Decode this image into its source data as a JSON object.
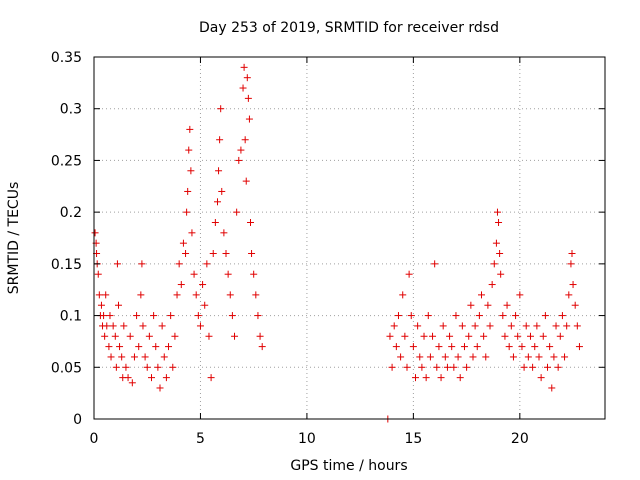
{
  "chart_data": {
    "type": "scatter",
    "title": "Day 253 of 2019, SRMTID for receiver rdsd",
    "xlabel": "GPS time / hours",
    "ylabel": "SRMTID / TECUs",
    "xlim": [
      0,
      24
    ],
    "ylim": [
      0,
      0.35
    ],
    "xticks": [
      0,
      5,
      10,
      15,
      20
    ],
    "xtick_labels": [
      "0",
      "5",
      "10",
      "15",
      "20"
    ],
    "yticks": [
      0,
      0.05,
      0.1,
      0.15,
      0.2,
      0.25,
      0.3,
      0.35
    ],
    "ytick_labels": [
      "0",
      "0.05",
      "0.1",
      "0.15",
      "0.2",
      "0.25",
      "0.3",
      "0.35"
    ],
    "grid": true,
    "marker": "plus",
    "color": "#e00000",
    "series": [
      {
        "name": "SRMTID",
        "points": [
          [
            0.05,
            0.18
          ],
          [
            0.1,
            0.17
          ],
          [
            0.12,
            0.16
          ],
          [
            0.15,
            0.15
          ],
          [
            0.2,
            0.14
          ],
          [
            0.25,
            0.12
          ],
          [
            0.3,
            0.1
          ],
          [
            0.35,
            0.11
          ],
          [
            0.4,
            0.09
          ],
          [
            0.45,
            0.1
          ],
          [
            0.5,
            0.08
          ],
          [
            0.55,
            0.12
          ],
          [
            0.6,
            0.09
          ],
          [
            0.7,
            0.07
          ],
          [
            0.75,
            0.1
          ],
          [
            0.8,
            0.06
          ],
          [
            0.9,
            0.09
          ],
          [
            1.0,
            0.08
          ],
          [
            1.05,
            0.05
          ],
          [
            1.1,
            0.15
          ],
          [
            1.15,
            0.11
          ],
          [
            1.2,
            0.07
          ],
          [
            1.3,
            0.06
          ],
          [
            1.35,
            0.04
          ],
          [
            1.4,
            0.09
          ],
          [
            1.5,
            0.05
          ],
          [
            1.6,
            0.04
          ],
          [
            1.7,
            0.08
          ],
          [
            1.8,
            0.035
          ],
          [
            1.9,
            0.06
          ],
          [
            2.0,
            0.1
          ],
          [
            2.1,
            0.07
          ],
          [
            2.2,
            0.12
          ],
          [
            2.25,
            0.15
          ],
          [
            2.3,
            0.09
          ],
          [
            2.4,
            0.06
          ],
          [
            2.5,
            0.05
          ],
          [
            2.6,
            0.08
          ],
          [
            2.7,
            0.04
          ],
          [
            2.8,
            0.1
          ],
          [
            2.9,
            0.07
          ],
          [
            3.0,
            0.05
          ],
          [
            3.1,
            0.03
          ],
          [
            3.2,
            0.09
          ],
          [
            3.3,
            0.06
          ],
          [
            3.4,
            0.04
          ],
          [
            3.5,
            0.07
          ],
          [
            3.6,
            0.1
          ],
          [
            3.7,
            0.05
          ],
          [
            3.8,
            0.08
          ],
          [
            3.9,
            0.12
          ],
          [
            4.0,
            0.15
          ],
          [
            4.1,
            0.13
          ],
          [
            4.2,
            0.17
          ],
          [
            4.3,
            0.16
          ],
          [
            4.35,
            0.2
          ],
          [
            4.4,
            0.22
          ],
          [
            4.45,
            0.26
          ],
          [
            4.5,
            0.28
          ],
          [
            4.55,
            0.24
          ],
          [
            4.6,
            0.18
          ],
          [
            4.7,
            0.14
          ],
          [
            4.8,
            0.12
          ],
          [
            4.9,
            0.1
          ],
          [
            5.0,
            0.09
          ],
          [
            5.1,
            0.13
          ],
          [
            5.2,
            0.11
          ],
          [
            5.3,
            0.15
          ],
          [
            5.4,
            0.08
          ],
          [
            5.5,
            0.04
          ],
          [
            5.6,
            0.16
          ],
          [
            5.7,
            0.19
          ],
          [
            5.8,
            0.21
          ],
          [
            5.85,
            0.24
          ],
          [
            5.9,
            0.27
          ],
          [
            5.95,
            0.3
          ],
          [
            6.0,
            0.22
          ],
          [
            6.1,
            0.18
          ],
          [
            6.2,
            0.16
          ],
          [
            6.3,
            0.14
          ],
          [
            6.4,
            0.12
          ],
          [
            6.5,
            0.1
          ],
          [
            6.6,
            0.08
          ],
          [
            6.7,
            0.2
          ],
          [
            6.8,
            0.25
          ],
          [
            6.9,
            0.26
          ],
          [
            7.0,
            0.32
          ],
          [
            7.05,
            0.34
          ],
          [
            7.1,
            0.27
          ],
          [
            7.15,
            0.23
          ],
          [
            7.2,
            0.33
          ],
          [
            7.25,
            0.31
          ],
          [
            7.3,
            0.29
          ],
          [
            7.35,
            0.19
          ],
          [
            7.4,
            0.16
          ],
          [
            7.5,
            0.14
          ],
          [
            7.6,
            0.12
          ],
          [
            7.7,
            0.1
          ],
          [
            7.8,
            0.08
          ],
          [
            7.9,
            0.07
          ],
          [
            13.8,
            0.0
          ],
          [
            13.9,
            0.08
          ],
          [
            14.0,
            0.05
          ],
          [
            14.1,
            0.09
          ],
          [
            14.2,
            0.07
          ],
          [
            14.3,
            0.1
          ],
          [
            14.4,
            0.06
          ],
          [
            14.5,
            0.12
          ],
          [
            14.6,
            0.08
          ],
          [
            14.7,
            0.05
          ],
          [
            14.8,
            0.14
          ],
          [
            14.9,
            0.1
          ],
          [
            15.0,
            0.07
          ],
          [
            15.1,
            0.04
          ],
          [
            15.2,
            0.09
          ],
          [
            15.3,
            0.06
          ],
          [
            15.4,
            0.05
          ],
          [
            15.5,
            0.08
          ],
          [
            15.6,
            0.04
          ],
          [
            15.7,
            0.1
          ],
          [
            15.8,
            0.06
          ],
          [
            15.9,
            0.08
          ],
          [
            16.0,
            0.15
          ],
          [
            16.1,
            0.05
          ],
          [
            16.2,
            0.07
          ],
          [
            16.3,
            0.04
          ],
          [
            16.4,
            0.09
          ],
          [
            16.5,
            0.06
          ],
          [
            16.6,
            0.05
          ],
          [
            16.7,
            0.08
          ],
          [
            16.8,
            0.07
          ],
          [
            16.9,
            0.05
          ],
          [
            17.0,
            0.1
          ],
          [
            17.1,
            0.06
          ],
          [
            17.2,
            0.04
          ],
          [
            17.3,
            0.09
          ],
          [
            17.4,
            0.07
          ],
          [
            17.5,
            0.05
          ],
          [
            17.6,
            0.08
          ],
          [
            17.7,
            0.11
          ],
          [
            17.8,
            0.06
          ],
          [
            17.9,
            0.09
          ],
          [
            18.0,
            0.07
          ],
          [
            18.1,
            0.1
          ],
          [
            18.2,
            0.12
          ],
          [
            18.3,
            0.08
          ],
          [
            18.4,
            0.06
          ],
          [
            18.5,
            0.11
          ],
          [
            18.6,
            0.09
          ],
          [
            18.7,
            0.13
          ],
          [
            18.8,
            0.15
          ],
          [
            18.9,
            0.17
          ],
          [
            18.95,
            0.2
          ],
          [
            19.0,
            0.19
          ],
          [
            19.05,
            0.16
          ],
          [
            19.1,
            0.14
          ],
          [
            19.2,
            0.1
          ],
          [
            19.3,
            0.08
          ],
          [
            19.4,
            0.11
          ],
          [
            19.5,
            0.07
          ],
          [
            19.6,
            0.09
          ],
          [
            19.7,
            0.06
          ],
          [
            19.8,
            0.1
          ],
          [
            19.9,
            0.08
          ],
          [
            20.0,
            0.12
          ],
          [
            20.1,
            0.07
          ],
          [
            20.2,
            0.05
          ],
          [
            20.3,
            0.09
          ],
          [
            20.4,
            0.06
          ],
          [
            20.5,
            0.08
          ],
          [
            20.6,
            0.05
          ],
          [
            20.7,
            0.07
          ],
          [
            20.8,
            0.09
          ],
          [
            20.9,
            0.06
          ],
          [
            21.0,
            0.04
          ],
          [
            21.1,
            0.08
          ],
          [
            21.2,
            0.1
          ],
          [
            21.3,
            0.05
          ],
          [
            21.4,
            0.07
          ],
          [
            21.5,
            0.03
          ],
          [
            21.6,
            0.06
          ],
          [
            21.7,
            0.09
          ],
          [
            21.8,
            0.05
          ],
          [
            21.9,
            0.08
          ],
          [
            22.0,
            0.1
          ],
          [
            22.1,
            0.06
          ],
          [
            22.2,
            0.09
          ],
          [
            22.3,
            0.12
          ],
          [
            22.4,
            0.15
          ],
          [
            22.45,
            0.16
          ],
          [
            22.5,
            0.13
          ],
          [
            22.6,
            0.11
          ],
          [
            22.7,
            0.09
          ],
          [
            22.8,
            0.07
          ]
        ]
      }
    ]
  }
}
